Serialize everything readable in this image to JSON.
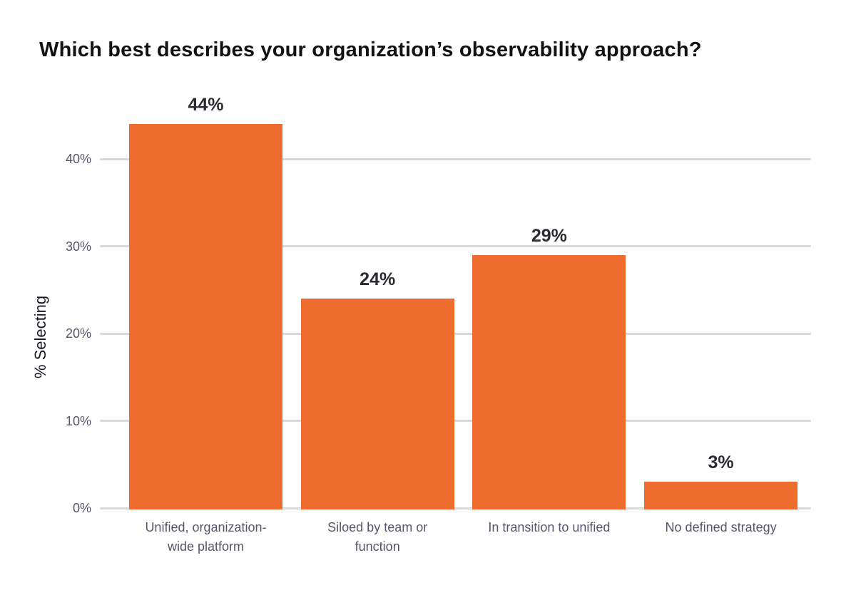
{
  "chart_data": {
    "type": "bar",
    "title": "Which best describes your organization’s observability approach?",
    "ylabel": "% Selecting",
    "xlabel": "",
    "categories": [
      "Unified, organization-wide platform",
      "Siloed by team or function",
      "In transition to unified",
      "No defined strategy"
    ],
    "values": [
      44,
      24,
      29,
      3
    ],
    "value_labels": [
      "44%",
      "24%",
      "29%",
      "3%"
    ],
    "yticks": [
      {
        "value": 0,
        "label": "0%"
      },
      {
        "value": 10,
        "label": "10%"
      },
      {
        "value": 20,
        "label": "20%"
      },
      {
        "value": 30,
        "label": "30%"
      },
      {
        "value": 40,
        "label": "40%"
      }
    ],
    "ylim": [
      0,
      46
    ],
    "grid": true,
    "legend": false,
    "colors": {
      "bar": "#ED6C2E",
      "gridline": "#D9D9D9",
      "title": "#121212",
      "value_label": "#2B2B31",
      "tick_label": "#55556D",
      "category_label": "#55556D",
      "axis_label": "#191921",
      "background": "#FFFFFF"
    }
  }
}
